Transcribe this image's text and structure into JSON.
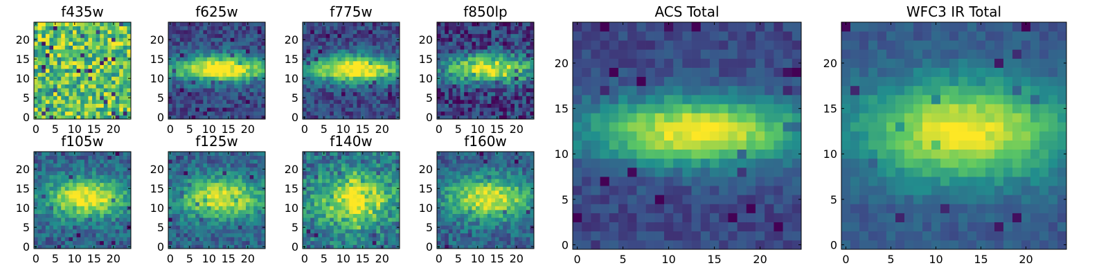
{
  "figure": {
    "background": "#ffffff",
    "colormap": "viridis",
    "colormap_stops": [
      "#440154",
      "#3b528b",
      "#21908d",
      "#5dc863",
      "#fde725"
    ]
  },
  "chart_data": [
    {
      "type": "heatmap",
      "title": "f435w",
      "image_size": [
        25,
        25
      ],
      "xticks": [
        0,
        5,
        10,
        15,
        20
      ],
      "yticks": [
        0,
        5,
        10,
        15,
        20
      ],
      "xlim": [
        -0.5,
        24.5
      ],
      "ylim": [
        -0.5,
        24.5
      ],
      "pattern": "noise-dominated, mostly bright yellow-green"
    },
    {
      "type": "heatmap",
      "title": "f625w",
      "image_size": [
        25,
        25
      ],
      "xticks": [
        0,
        5,
        10,
        15,
        20
      ],
      "yticks": [
        0,
        5,
        10,
        15,
        20
      ],
      "xlim": [
        -0.5,
        24.5
      ],
      "ylim": [
        -0.5,
        24.5
      ],
      "pattern": "horizontal elongated source centered near (13, 12.5)"
    },
    {
      "type": "heatmap",
      "title": "f775w",
      "image_size": [
        25,
        25
      ],
      "xticks": [
        0,
        5,
        10,
        15,
        20
      ],
      "yticks": [
        0,
        5,
        10,
        15,
        20
      ],
      "xlim": [
        -0.5,
        24.5
      ],
      "ylim": [
        -0.5,
        24.5
      ],
      "pattern": "horizontal elongated source centered near (13, 12.5)"
    },
    {
      "type": "heatmap",
      "title": "f850lp",
      "image_size": [
        25,
        25
      ],
      "xticks": [
        0,
        5,
        10,
        15,
        20
      ],
      "yticks": [
        0,
        5,
        10,
        15,
        20
      ],
      "xlim": [
        -0.5,
        24.5
      ],
      "ylim": [
        -0.5,
        24.5
      ],
      "pattern": "horizontal elongated source, noisier background"
    },
    {
      "type": "heatmap",
      "title": "f105w",
      "image_size": [
        25,
        25
      ],
      "xticks": [
        0,
        5,
        10,
        15,
        20
      ],
      "yticks": [
        0,
        5,
        10,
        15,
        20
      ],
      "xlim": [
        -0.5,
        24.5
      ],
      "ylim": [
        -0.5,
        24.5
      ],
      "pattern": "elongated source centered near (13, 12.5)"
    },
    {
      "type": "heatmap",
      "title": "f125w",
      "image_size": [
        25,
        25
      ],
      "xticks": [
        0,
        5,
        10,
        15,
        20
      ],
      "yticks": [
        0,
        5,
        10,
        15,
        20
      ],
      "xlim": [
        -0.5,
        24.5
      ],
      "ylim": [
        -0.5,
        24.5
      ],
      "pattern": "elongated source centered near (13, 12.5)"
    },
    {
      "type": "heatmap",
      "title": "f140w",
      "image_size": [
        25,
        25
      ],
      "xticks": [
        0,
        5,
        10,
        15,
        20
      ],
      "yticks": [
        0,
        5,
        10,
        15,
        20
      ],
      "xlim": [
        -0.5,
        24.5
      ],
      "ylim": [
        -0.5,
        24.5
      ],
      "pattern": "broad source with cross-like structure"
    },
    {
      "type": "heatmap",
      "title": "f160w",
      "image_size": [
        25,
        25
      ],
      "xticks": [
        0,
        5,
        10,
        15,
        20
      ],
      "yticks": [
        0,
        5,
        10,
        15,
        20
      ],
      "xlim": [
        -0.5,
        24.5
      ],
      "ylim": [
        -0.5,
        24.5
      ],
      "pattern": "elongated source centered near (13, 12.5)"
    },
    {
      "type": "heatmap",
      "title": "ACS Total",
      "image_size": [
        25,
        25
      ],
      "xticks": [
        0,
        5,
        10,
        15,
        20
      ],
      "yticks": [
        0,
        5,
        10,
        15,
        20
      ],
      "xlim": [
        -0.5,
        24.5
      ],
      "ylim": [
        -0.5,
        24.5
      ],
      "pattern": "smooth elongated source centered near (13, 12.5)"
    },
    {
      "type": "heatmap",
      "title": "WFC3 IR Total",
      "image_size": [
        25,
        25
      ],
      "xticks": [
        0,
        5,
        10,
        15,
        20
      ],
      "yticks": [
        0,
        5,
        10,
        15,
        20
      ],
      "xlim": [
        -0.5,
        24.5
      ],
      "ylim": [
        -0.5,
        24.5
      ],
      "pattern": "smooth broad source centered near (13, 12.5)"
    }
  ]
}
